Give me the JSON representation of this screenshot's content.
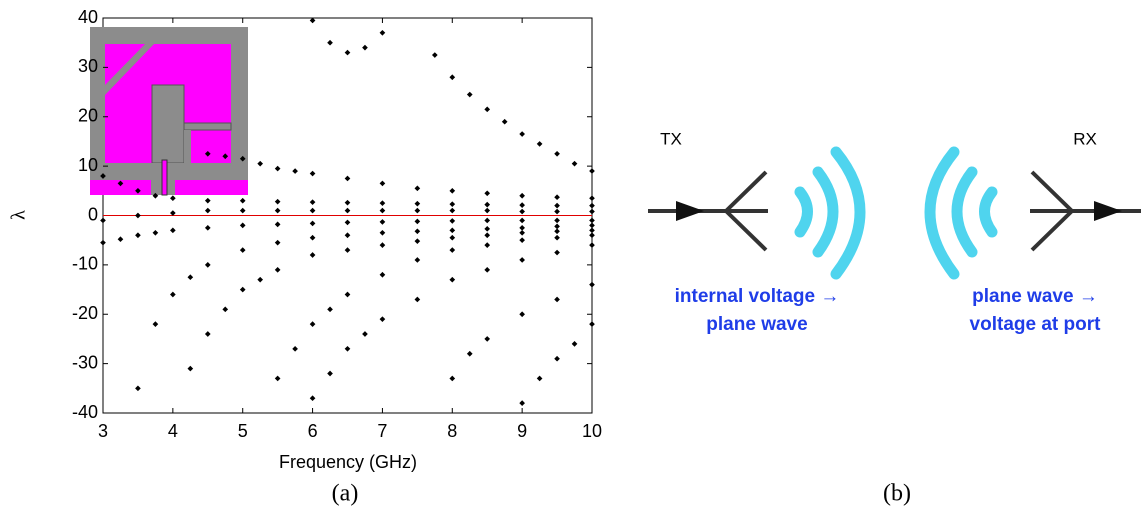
{
  "chart_data": {
    "type": "scatter",
    "xlabel": "Frequency (GHz)",
    "ylabel": "λ",
    "xlim": [
      3,
      10
    ],
    "ylim": [
      -40,
      40
    ],
    "xticks": [
      3,
      4,
      5,
      6,
      7,
      8,
      9,
      10
    ],
    "yticks": [
      -40,
      -30,
      -20,
      -10,
      0,
      10,
      20,
      30,
      40
    ],
    "reference_line": {
      "value": 0,
      "color": "#e00000"
    },
    "series": [
      {
        "color": "#000000",
        "x": [
          6.0,
          6.25,
          6.5,
          6.75,
          7.0
        ],
        "values": [
          39.5,
          35,
          33,
          34,
          37
        ]
      },
      {
        "color": "#000000",
        "x": [
          7.75,
          8.0,
          8.25,
          8.5,
          8.75,
          9.0,
          9.25,
          9.5,
          9.75,
          10.0
        ],
        "values": [
          32.5,
          28,
          24.5,
          21.5,
          19,
          16.5,
          14.5,
          12.5,
          10.5,
          9
        ]
      },
      {
        "color": "#000000",
        "x": [
          4.5,
          4.75,
          5.0,
          5.25,
          5.5,
          5.75,
          6.0,
          6.5,
          7.0,
          7.5,
          8.0,
          8.5,
          9.0,
          9.5,
          10.0
        ],
        "values": [
          12.5,
          12,
          11.5,
          10.5,
          9.5,
          9,
          8.5,
          7.5,
          6.5,
          5.5,
          5,
          4.5,
          4,
          3.7,
          3.5
        ]
      },
      {
        "color": "#000000",
        "x": [
          3.0,
          3.25,
          3.5,
          3.75,
          4.0,
          4.5,
          5.0,
          5.5,
          6.0,
          6.5,
          7.0,
          7.5,
          8.0,
          8.5,
          9.0,
          9.5,
          10.0
        ],
        "values": [
          8,
          6.5,
          5,
          4,
          3.5,
          3,
          3,
          2.8,
          2.7,
          2.6,
          2.5,
          2.4,
          2.3,
          2.2,
          2.1,
          2,
          2
        ]
      },
      {
        "color": "#000000",
        "x": [
          3.0,
          3.5,
          4.0,
          4.5,
          5.0,
          5.5,
          6.0,
          6.5,
          7.0,
          7.5,
          8.0,
          8.5,
          9.0,
          9.5,
          10.0
        ],
        "values": [
          -1,
          0,
          0.5,
          1,
          1,
          1,
          1,
          1,
          1,
          1,
          1,
          1,
          0.8,
          0.8,
          0.8
        ]
      },
      {
        "color": "#000000",
        "x": [
          3.0,
          3.25,
          3.5,
          3.75,
          4.0,
          4.5,
          5.0,
          5.5,
          6.0,
          6.5,
          7.0,
          7.5,
          8.0,
          8.5,
          9.0,
          9.5,
          10.0
        ],
        "values": [
          -5.5,
          -4.8,
          -4,
          -3.5,
          -3,
          -2.5,
          -2,
          -1.8,
          -1.6,
          -1.4,
          -1.3,
          -1.2,
          -1.1,
          -1,
          -1,
          -1,
          -1
        ]
      },
      {
        "color": "#000000",
        "x": [
          3.5,
          3.75,
          4.0,
          4.25,
          4.5,
          5.0,
          5.5,
          6.0,
          6.5,
          7.0,
          7.5,
          8.0,
          8.5,
          9.0,
          9.5,
          10.0
        ],
        "values": [
          -35,
          -22,
          -16,
          -12.5,
          -10,
          -7,
          -5.5,
          -4.5,
          -4,
          -3.5,
          -3.2,
          -3,
          -2.7,
          -2.5,
          -2.2,
          -2
        ]
      },
      {
        "color": "#000000",
        "x": [
          4.25,
          4.5,
          4.75,
          5.0,
          5.25,
          5.5,
          6.0,
          6.5,
          7.0,
          7.5,
          8.0,
          8.5,
          9.0,
          9.5,
          10.0
        ],
        "values": [
          -31,
          -24,
          -19,
          -15,
          -13,
          -11,
          -8,
          -7,
          -6,
          -5.2,
          -4.5,
          -4,
          -3.5,
          -3.2,
          -3
        ]
      },
      {
        "color": "#000000",
        "x": [
          5.5,
          5.75,
          6.0,
          6.25,
          6.5,
          7.0,
          7.5,
          8.0,
          8.5,
          9.0,
          9.5,
          10.0
        ],
        "values": [
          -33,
          -27,
          -22,
          -19,
          -16,
          -12,
          -9,
          -7,
          -6,
          -5,
          -4.5,
          -4
        ]
      },
      {
        "color": "#000000",
        "x": [
          6.0,
          6.25,
          6.5,
          6.75,
          7.0,
          7.5,
          8.0,
          8.5,
          9.0,
          9.5,
          10.0
        ],
        "values": [
          -37,
          -32,
          -27,
          -24,
          -21,
          -17,
          -13,
          -11,
          -9,
          -7.5,
          -6
        ]
      },
      {
        "color": "#000000",
        "x": [
          8.0,
          8.25,
          8.5,
          9.0,
          9.5,
          10.0
        ],
        "values": [
          -33,
          -28,
          -25,
          -20,
          -17,
          -14
        ]
      },
      {
        "color": "#000000",
        "x": [
          9.0,
          9.25,
          9.5,
          9.75,
          10.0
        ],
        "values": [
          -38,
          -33,
          -29,
          -26,
          -22
        ]
      }
    ]
  },
  "diagram": {
    "tx": "TX",
    "rx": "RX",
    "tx_caption": [
      "internal voltage →",
      "plane wave"
    ],
    "rx_caption": [
      "plane wave →",
      "voltage at port"
    ]
  },
  "captions": [
    "(a)",
    "(b)"
  ]
}
